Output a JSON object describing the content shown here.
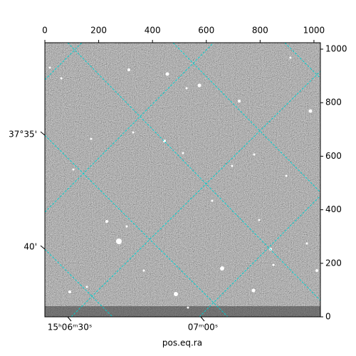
{
  "chart_data": {
    "type": "image",
    "xlabel": "pos.eq.ra",
    "xlim": [
      0,
      1024
    ],
    "xticks": [
      0,
      200,
      400,
      600,
      800,
      1000
    ],
    "ylim": [
      0,
      1024
    ],
    "yticks": [
      0,
      200,
      400,
      600,
      800,
      1000
    ],
    "ra_ticks": [
      "15ʰ06ᵐ30ˢ",
      "07ᵐ00ˢ"
    ],
    "dec_ticks": [
      "37°35'",
      "40'"
    ],
    "grid_color": "#00d0d0"
  }
}
